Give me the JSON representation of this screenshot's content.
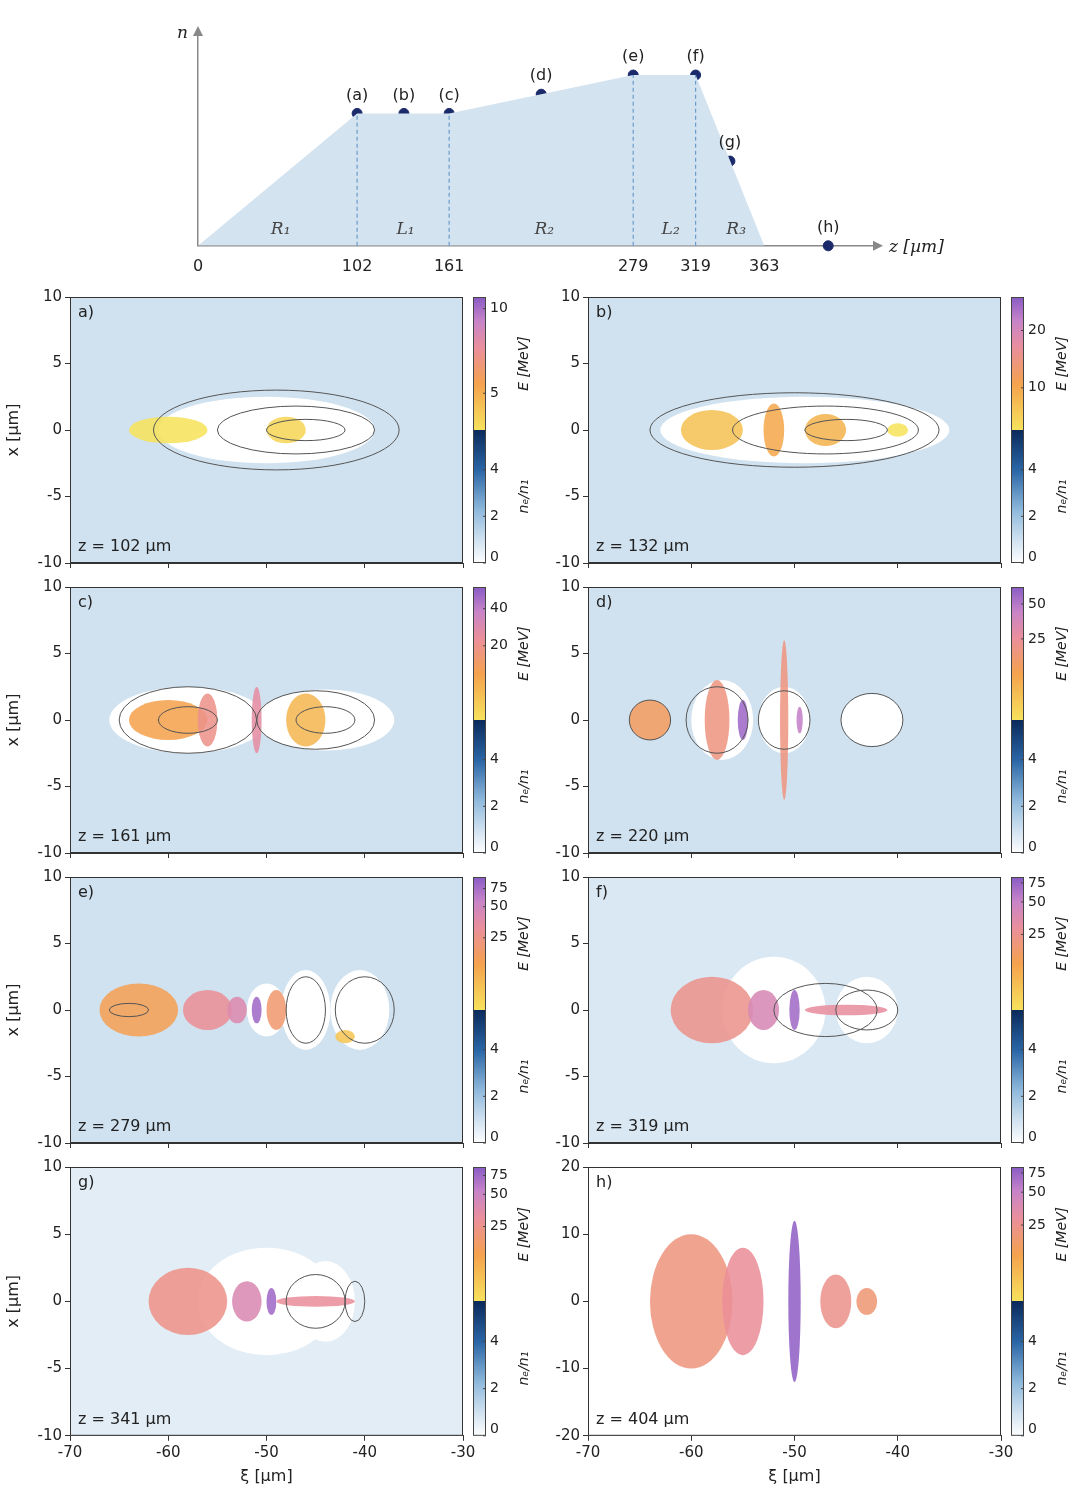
{
  "chart_data": [
    {
      "type": "area",
      "y_label": "n",
      "x_label": "z [µm]",
      "xlim": [
        0,
        434
      ],
      "xticks": [
        0,
        102,
        161,
        279,
        319,
        363
      ],
      "ylim": [
        0,
        1.6
      ],
      "tick_labels": "x",
      "color": "#d3e3f0",
      "marker_color": "#1b2a6b",
      "profile": {
        "z": [
          0,
          102,
          161,
          279,
          319,
          363
        ],
        "n": [
          0,
          1,
          1,
          1.29,
          1.29,
          0
        ]
      },
      "dashed_lines": [
        102,
        161,
        279,
        319
      ],
      "points": [
        {
          "label": "(a)",
          "z": 102,
          "n": 1
        },
        {
          "label": "(b)",
          "z": 132,
          "n": 1
        },
        {
          "label": "(c)",
          "z": 161,
          "n": 1
        },
        {
          "label": "(d)",
          "z": 220,
          "n": 1.145
        },
        {
          "label": "(e)",
          "z": 279,
          "n": 1.29
        },
        {
          "label": "(f)",
          "z": 319,
          "n": 1.29
        },
        {
          "label": "(g)",
          "z": 341,
          "n": 0.64
        },
        {
          "label": "(h)",
          "z": 404,
          "n": 0
        }
      ],
      "regions": [
        {
          "label": "R₁",
          "z": 53,
          "n": 0.12
        },
        {
          "label": "L₁",
          "z": 133,
          "n": 0.12
        },
        {
          "label": "R₂",
          "z": 222,
          "n": 0.12
        },
        {
          "label": "L₂",
          "z": 303,
          "n": 0.12
        },
        {
          "label": "R₃",
          "z": 345,
          "n": 0.12
        }
      ]
    },
    {
      "type": "particle_map",
      "label": "a)",
      "z_text": "z = 102 µm",
      "y_label": "x [µm]",
      "xlim": [
        -70,
        -30
      ],
      "xticks": [
        -70,
        -60,
        -50,
        -40,
        -30
      ],
      "ylim": [
        -10,
        10
      ],
      "yticks": [
        -10,
        -5,
        0,
        5,
        10
      ],
      "tick_labels": "y",
      "background_density": 1,
      "cavities": [
        {
          "xi": -50,
          "x": 0,
          "dxi": 11,
          "dx": 2.5
        }
      ],
      "laser_contours": [
        {
          "xi": -49,
          "x": 0,
          "dxi": 12.5,
          "dx": 3
        },
        {
          "xi": -47,
          "x": 0,
          "dxi": 8,
          "dx": 1.8
        },
        {
          "xi": -46,
          "x": 0,
          "dxi": 4,
          "dx": 0.8
        }
      ],
      "bunches": [
        {
          "xi": -60,
          "x": 0,
          "dxi": 4,
          "dx": 1,
          "E": 3.7
        },
        {
          "xi": -48,
          "x": 0,
          "dxi": 2,
          "dx": 1,
          "E": 4
        }
      ],
      "colorbar_E": {
        "label": "E [MeV]",
        "range": [
          3.7,
          11
        ],
        "ticks": [
          5,
          10
        ],
        "log": true
      },
      "colorbar_n": {
        "label": "nₑ/n₁",
        "range": [
          0,
          5.7
        ],
        "ticks": [
          0,
          2,
          4
        ]
      }
    },
    {
      "type": "particle_map",
      "label": "b)",
      "z_text": "z = 132 µm",
      "xlim": [
        -70,
        -30
      ],
      "xticks": [
        -70,
        -60,
        -50,
        -40,
        -30
      ],
      "ylim": [
        -10,
        10
      ],
      "yticks": [
        -10,
        -5,
        0,
        5,
        10
      ],
      "tick_labels": "y",
      "background_density": 1,
      "cavities": [
        {
          "xi": -49,
          "x": 0,
          "dxi": 14,
          "dx": 2.5
        }
      ],
      "laser_contours": [
        {
          "xi": -50,
          "x": 0,
          "dxi": 14,
          "dx": 2.8
        },
        {
          "xi": -47,
          "x": 0,
          "dxi": 9,
          "dx": 1.8
        },
        {
          "xi": -45,
          "x": 0,
          "dxi": 4,
          "dx": 0.8
        }
      ],
      "bunches": [
        {
          "xi": -58,
          "x": 0,
          "dxi": 3,
          "dx": 1.5,
          "E": 8
        },
        {
          "xi": -52,
          "x": 0,
          "dxi": 1,
          "dx": 2,
          "E": 10
        },
        {
          "xi": -47,
          "x": 0,
          "dxi": 2,
          "dx": 1.2,
          "E": 9
        },
        {
          "xi": -40,
          "x": 0,
          "dxi": 1,
          "dx": 0.5,
          "E": 6
        }
      ],
      "colorbar_E": {
        "label": "E [MeV]",
        "range": [
          6,
          30
        ],
        "ticks": [
          10,
          20
        ],
        "log": true
      },
      "colorbar_n": {
        "label": "nₑ/n₁",
        "range": [
          0,
          5.7
        ],
        "ticks": [
          0,
          2,
          4
        ]
      }
    },
    {
      "type": "particle_map",
      "label": "c)",
      "z_text": "z = 161 µm",
      "y_label": "x [µm]",
      "xlim": [
        -70,
        -30
      ],
      "xticks": [
        -70,
        -60,
        -50,
        -40,
        -30
      ],
      "ylim": [
        -10,
        10
      ],
      "yticks": [
        -10,
        -5,
        0,
        5,
        10
      ],
      "tick_labels": "y",
      "background_density": 1,
      "cavities": [
        {
          "xi": -58,
          "x": 0,
          "dxi": 8,
          "dx": 2.5
        },
        {
          "xi": -44,
          "x": 0,
          "dxi": 7,
          "dx": 2.3
        }
      ],
      "laser_contours": [
        {
          "xi": -58,
          "x": 0,
          "dxi": 7,
          "dx": 2.5
        },
        {
          "xi": -45,
          "x": 0,
          "dxi": 6,
          "dx": 2.2
        },
        {
          "xi": -58,
          "x": 0,
          "dxi": 3,
          "dx": 1
        },
        {
          "xi": -44,
          "x": 0,
          "dxi": 3,
          "dx": 1
        }
      ],
      "bunches": [
        {
          "xi": -60,
          "x": 0,
          "dxi": 4,
          "dx": 1.5,
          "E": 12
        },
        {
          "xi": -56,
          "x": 0,
          "dxi": 1,
          "dx": 2,
          "E": 20
        },
        {
          "xi": -51,
          "x": 0,
          "dxi": 0.5,
          "dx": 2.5,
          "E": 25
        },
        {
          "xi": -46,
          "x": 0,
          "dxi": 2,
          "dx": 2,
          "E": 9
        }
      ],
      "colorbar_E": {
        "label": "E [MeV]",
        "range": [
          5,
          60
        ],
        "ticks": [
          20,
          40
        ],
        "log": true
      },
      "colorbar_n": {
        "label": "nₑ/n₁",
        "range": [
          0,
          5.7
        ],
        "ticks": [
          0,
          2,
          4
        ]
      }
    },
    {
      "type": "particle_map",
      "label": "d)",
      "z_text": "z = 220 µm",
      "xlim": [
        -70,
        -30
      ],
      "xticks": [
        -70,
        -60,
        -50,
        -40,
        -30
      ],
      "ylim": [
        -10,
        10
      ],
      "yticks": [
        -10,
        -5,
        0,
        5,
        10
      ],
      "tick_labels": "y",
      "background_density": 1,
      "cavities": [
        {
          "xi": -57,
          "x": 0,
          "dxi": 3,
          "dx": 3
        },
        {
          "xi": -51,
          "x": 0,
          "dxi": 2.5,
          "dx": 2.5
        },
        {
          "xi": -42.5,
          "x": 0,
          "dxi": 3,
          "dx": 2
        }
      ],
      "laser_contours": [
        {
          "xi": -64,
          "x": 0,
          "dxi": 2,
          "dx": 1.5
        },
        {
          "xi": -57.5,
          "x": 0,
          "dxi": 3,
          "dx": 2.5
        },
        {
          "xi": -51,
          "x": 0,
          "dxi": 2.5,
          "dx": 2.2
        },
        {
          "xi": -42.5,
          "x": 0,
          "dxi": 3,
          "dx": 2
        }
      ],
      "bunches": [
        {
          "xi": -64,
          "x": 0,
          "dxi": 2,
          "dx": 1.5,
          "E": 15
        },
        {
          "xi": -57.5,
          "x": 0,
          "dxi": 1.2,
          "dx": 3,
          "E": 20
        },
        {
          "xi": -55,
          "x": 0,
          "dxi": 0.5,
          "dx": 1.5,
          "E": 60
        },
        {
          "xi": -51,
          "x": 0,
          "dxi": 0.4,
          "dx": 6,
          "E": 20
        },
        {
          "xi": -49.5,
          "x": 0,
          "dxi": 0.3,
          "dx": 1,
          "E": 45
        }
      ],
      "colorbar_E": {
        "label": "E [MeV]",
        "range": [
          5,
          70
        ],
        "ticks": [
          25,
          50
        ],
        "log": true
      },
      "colorbar_n": {
        "label": "nₑ/n₁",
        "range": [
          0,
          5.7
        ],
        "ticks": [
          0,
          2,
          4
        ]
      }
    },
    {
      "type": "particle_map",
      "label": "e)",
      "z_text": "z = 279 µm",
      "y_label": "x [µm]",
      "xlim": [
        -70,
        -30
      ],
      "xticks": [
        -70,
        -60,
        -50,
        -40,
        -30
      ],
      "ylim": [
        -10,
        10
      ],
      "yticks": [
        -10,
        -5,
        0,
        5,
        10
      ],
      "tick_labels": "y",
      "background_density": 1,
      "cavities": [
        {
          "xi": -50,
          "x": 0,
          "dxi": 2,
          "dx": 2
        },
        {
          "xi": -46,
          "x": 0,
          "dxi": 2.5,
          "dx": 3
        },
        {
          "xi": -40.5,
          "x": 0,
          "dxi": 3,
          "dx": 3
        }
      ],
      "laser_contours": [
        {
          "xi": -46,
          "x": 0,
          "dxi": 2,
          "dx": 2.5
        },
        {
          "xi": -40,
          "x": 0,
          "dxi": 3,
          "dx": 2.5
        },
        {
          "xi": -64,
          "x": 0,
          "dxi": 2,
          "dx": 0.5
        }
      ],
      "bunches": [
        {
          "xi": -63,
          "x": 0,
          "dxi": 4,
          "dx": 2,
          "E": 15
        },
        {
          "xi": -56,
          "x": 0,
          "dxi": 2.5,
          "dx": 1.5,
          "E": 30
        },
        {
          "xi": -53,
          "x": 0,
          "dxi": 1,
          "dx": 1,
          "E": 40
        },
        {
          "xi": -51,
          "x": 0,
          "dxi": 0.5,
          "dx": 1,
          "E": 80
        },
        {
          "xi": -49,
          "x": 0,
          "dxi": 1,
          "dx": 1.5,
          "E": 20
        },
        {
          "xi": -42,
          "x": -2,
          "dxi": 1,
          "dx": 0.5,
          "E": 8
        }
      ],
      "colorbar_E": {
        "label": "E [MeV]",
        "range": [
          5,
          97
        ],
        "ticks": [
          25,
          50,
          75
        ],
        "log": true
      },
      "colorbar_n": {
        "label": "nₑ/n₁",
        "range": [
          0,
          5.7
        ],
        "ticks": [
          0,
          2,
          4
        ]
      }
    },
    {
      "type": "particle_map",
      "label": "f)",
      "z_text": "z = 319 µm",
      "xlim": [
        -70,
        -30
      ],
      "xticks": [
        -70,
        -60,
        -50,
        -40,
        -30
      ],
      "ylim": [
        -10,
        10
      ],
      "yticks": [
        -10,
        -5,
        0,
        5,
        10
      ],
      "tick_labels": "y",
      "background_density": 0.8,
      "cavities": [
        {
          "xi": -52,
          "x": 0,
          "dxi": 5,
          "dx": 4
        },
        {
          "xi": -43,
          "x": 0,
          "dxi": 3,
          "dx": 2.5
        }
      ],
      "laser_contours": [
        {
          "xi": -47,
          "x": 0,
          "dxi": 5,
          "dx": 2
        },
        {
          "xi": -43,
          "x": 0,
          "dxi": 3,
          "dx": 1.5
        }
      ],
      "bunches": [
        {
          "xi": -58,
          "x": 0,
          "dxi": 4,
          "dx": 2.5,
          "E": 25
        },
        {
          "xi": -53,
          "x": 0,
          "dxi": 1.5,
          "dx": 1.5,
          "E": 40
        },
        {
          "xi": -50,
          "x": 0,
          "dxi": 0.5,
          "dx": 1.5,
          "E": 70
        },
        {
          "xi": -45,
          "x": 0,
          "dxi": 4,
          "dx": 0.4,
          "E": 30
        }
      ],
      "colorbar_E": {
        "label": "E [MeV]",
        "range": [
          5,
          85
        ],
        "ticks": [
          25,
          50,
          75
        ],
        "log": true
      },
      "colorbar_n": {
        "label": "nₑ/n₁",
        "range": [
          0,
          5.7
        ],
        "ticks": [
          0,
          2,
          4
        ]
      }
    },
    {
      "type": "particle_map",
      "label": "g)",
      "z_text": "z = 341 µm",
      "y_label": "x [µm]",
      "x_label": "ξ [µm]",
      "xlim": [
        -70,
        -30
      ],
      "xticks": [
        -70,
        -60,
        -50,
        -40,
        -30
      ],
      "ylim": [
        -10,
        10
      ],
      "yticks": [
        -10,
        -5,
        0,
        5,
        10
      ],
      "background_density": 0.6,
      "cavities": [
        {
          "xi": -50,
          "x": 0,
          "dxi": 7,
          "dx": 4
        },
        {
          "xi": -44,
          "x": 0,
          "dxi": 3,
          "dx": 3
        }
      ],
      "laser_contours": [
        {
          "xi": -45,
          "x": 0,
          "dxi": 3,
          "dx": 2
        },
        {
          "xi": -41,
          "x": 0,
          "dxi": 1,
          "dx": 1.5
        }
      ],
      "bunches": [
        {
          "xi": -58,
          "x": 0,
          "dxi": 4,
          "dx": 2.5,
          "E": 25
        },
        {
          "xi": -52,
          "x": 0,
          "dxi": 1.5,
          "dx": 1.5,
          "E": 40
        },
        {
          "xi": -49.5,
          "x": 0,
          "dxi": 0.5,
          "dx": 1,
          "E": 75
        },
        {
          "xi": -45,
          "x": 0,
          "dxi": 4,
          "dx": 0.4,
          "E": 30
        }
      ],
      "colorbar_E": {
        "label": "E [MeV]",
        "range": [
          5,
          90
        ],
        "ticks": [
          25,
          50,
          75
        ],
        "log": true
      },
      "colorbar_n": {
        "label": "nₑ/n₁",
        "range": [
          0,
          5.7
        ],
        "ticks": [
          0,
          2,
          4
        ]
      }
    },
    {
      "type": "particle_map",
      "label": "h)",
      "z_text": "z = 404 µm",
      "x_label": "ξ [µm]",
      "xlim": [
        -70,
        -30
      ],
      "xticks": [
        -70,
        -60,
        -50,
        -40,
        -30
      ],
      "ylim": [
        -20,
        20
      ],
      "yticks": [
        -20,
        -10,
        0,
        10,
        20
      ],
      "background_density": 0,
      "cavities": [],
      "laser_contours": [],
      "bunches": [
        {
          "xi": -60,
          "x": 0,
          "dxi": 4,
          "dx": 10,
          "E": 22
        },
        {
          "xi": -55,
          "x": 0,
          "dxi": 2,
          "dx": 8,
          "E": 28
        },
        {
          "xi": -50,
          "x": 0,
          "dxi": 0.6,
          "dx": 12,
          "E": 80
        },
        {
          "xi": -46,
          "x": 0,
          "dxi": 1.5,
          "dx": 4,
          "E": 25
        },
        {
          "xi": -43,
          "x": 0,
          "dxi": 1,
          "dx": 2,
          "E": 20
        }
      ],
      "colorbar_E": {
        "label": "E [MeV]",
        "range": [
          5,
          85
        ],
        "ticks": [
          25,
          50,
          75
        ],
        "log": true
      },
      "colorbar_n": {
        "label": "nₑ/n₁",
        "range": [
          0,
          5.7
        ],
        "ticks": [
          0,
          2,
          4
        ]
      }
    }
  ]
}
